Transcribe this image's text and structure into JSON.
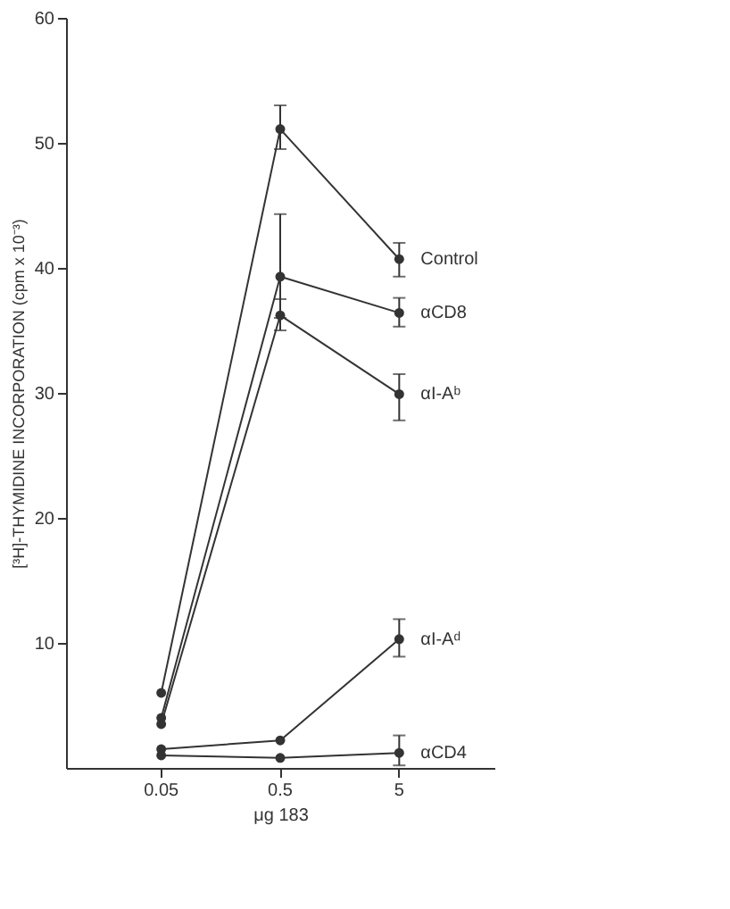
{
  "chart_data": {
    "type": "line",
    "xlabel": "μg 183",
    "ylabel": "[³H]-THYMIDINE INCORPORATION (cpm x 10⁻³)",
    "categories": [
      "0.05",
      "0.5",
      "5"
    ],
    "ylim": [
      0,
      60
    ],
    "yticks": [
      10,
      20,
      30,
      40,
      50,
      60
    ],
    "grid": false,
    "marker": "circle",
    "line_style": "solid",
    "series": [
      {
        "name": "Control",
        "color": "#333333",
        "values": [
          6,
          51.1,
          40.7
        ],
        "errors": [
          null,
          [
            49.5,
            53
          ],
          [
            39.3,
            42
          ]
        ]
      },
      {
        "name": "αCD8",
        "color": "#333333",
        "values": [
          4,
          39.3,
          36.4
        ],
        "errors": [
          null,
          [
            36,
            44.3
          ],
          [
            35.3,
            37.6
          ]
        ]
      },
      {
        "name": "αI-Aᵇ",
        "color": "#333333",
        "values": [
          3.5,
          36.2,
          29.9
        ],
        "errors": [
          null,
          [
            35,
            37.5
          ],
          [
            27.8,
            31.5
          ]
        ]
      },
      {
        "name": "αI-Aᵈ",
        "color": "#333333",
        "values": [
          1.5,
          2.2,
          10.3
        ],
        "errors": [
          null,
          null,
          [
            8.9,
            11.9
          ]
        ]
      },
      {
        "name": "αCD4",
        "color": "#333333",
        "values": [
          1,
          0.8,
          1.2
        ],
        "errors": [
          null,
          null,
          [
            0.2,
            2.6
          ]
        ]
      }
    ]
  }
}
